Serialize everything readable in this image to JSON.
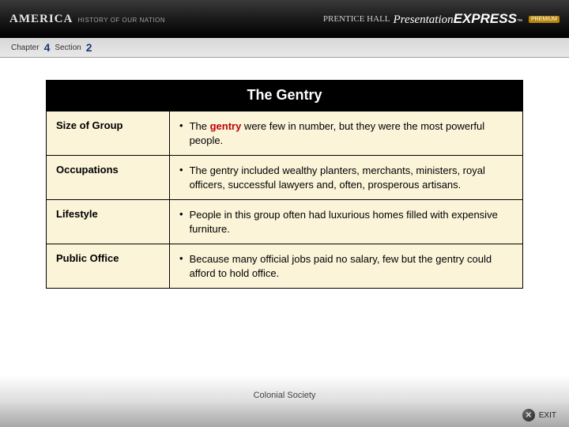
{
  "header": {
    "brand": "AMERICA",
    "brand_subtitle": "HISTORY OF OUR NATION",
    "publisher": "PRENTICE HALL",
    "product_a": "Presentation",
    "product_b": "EXPRESS",
    "tm": "™",
    "premium": "PREMIUM"
  },
  "breadcrumb": {
    "chapter_label": "Chapter",
    "chapter_num": "4",
    "section_label": "Section",
    "section_num": "2"
  },
  "table": {
    "title": "The Gentry",
    "highlight_word": "gentry",
    "rows": [
      {
        "label": "Size of Group",
        "pre": "The ",
        "post": " were few in number, but they were the most powerful people.",
        "highlighted": true
      },
      {
        "label": "Occupations",
        "text": "The gentry included wealthy planters, merchants, ministers, royal officers, successful lawyers and, often, prosperous artisans.",
        "highlighted": false
      },
      {
        "label": "Lifestyle",
        "text": "People in this group often had luxurious homes filled with expensive furniture.",
        "highlighted": false
      },
      {
        "label": "Public Office",
        "text": "Because many official jobs paid no salary, few but the gentry could afford to hold office.",
        "highlighted": false
      }
    ]
  },
  "footer": {
    "caption": "Colonial Society",
    "exit": "EXIT",
    "exit_glyph": "✕"
  },
  "style": {
    "table_bg": "#fbf4d9",
    "highlight_color": "#c00000",
    "title_fontsize": 18,
    "body_fontsize": 13
  }
}
